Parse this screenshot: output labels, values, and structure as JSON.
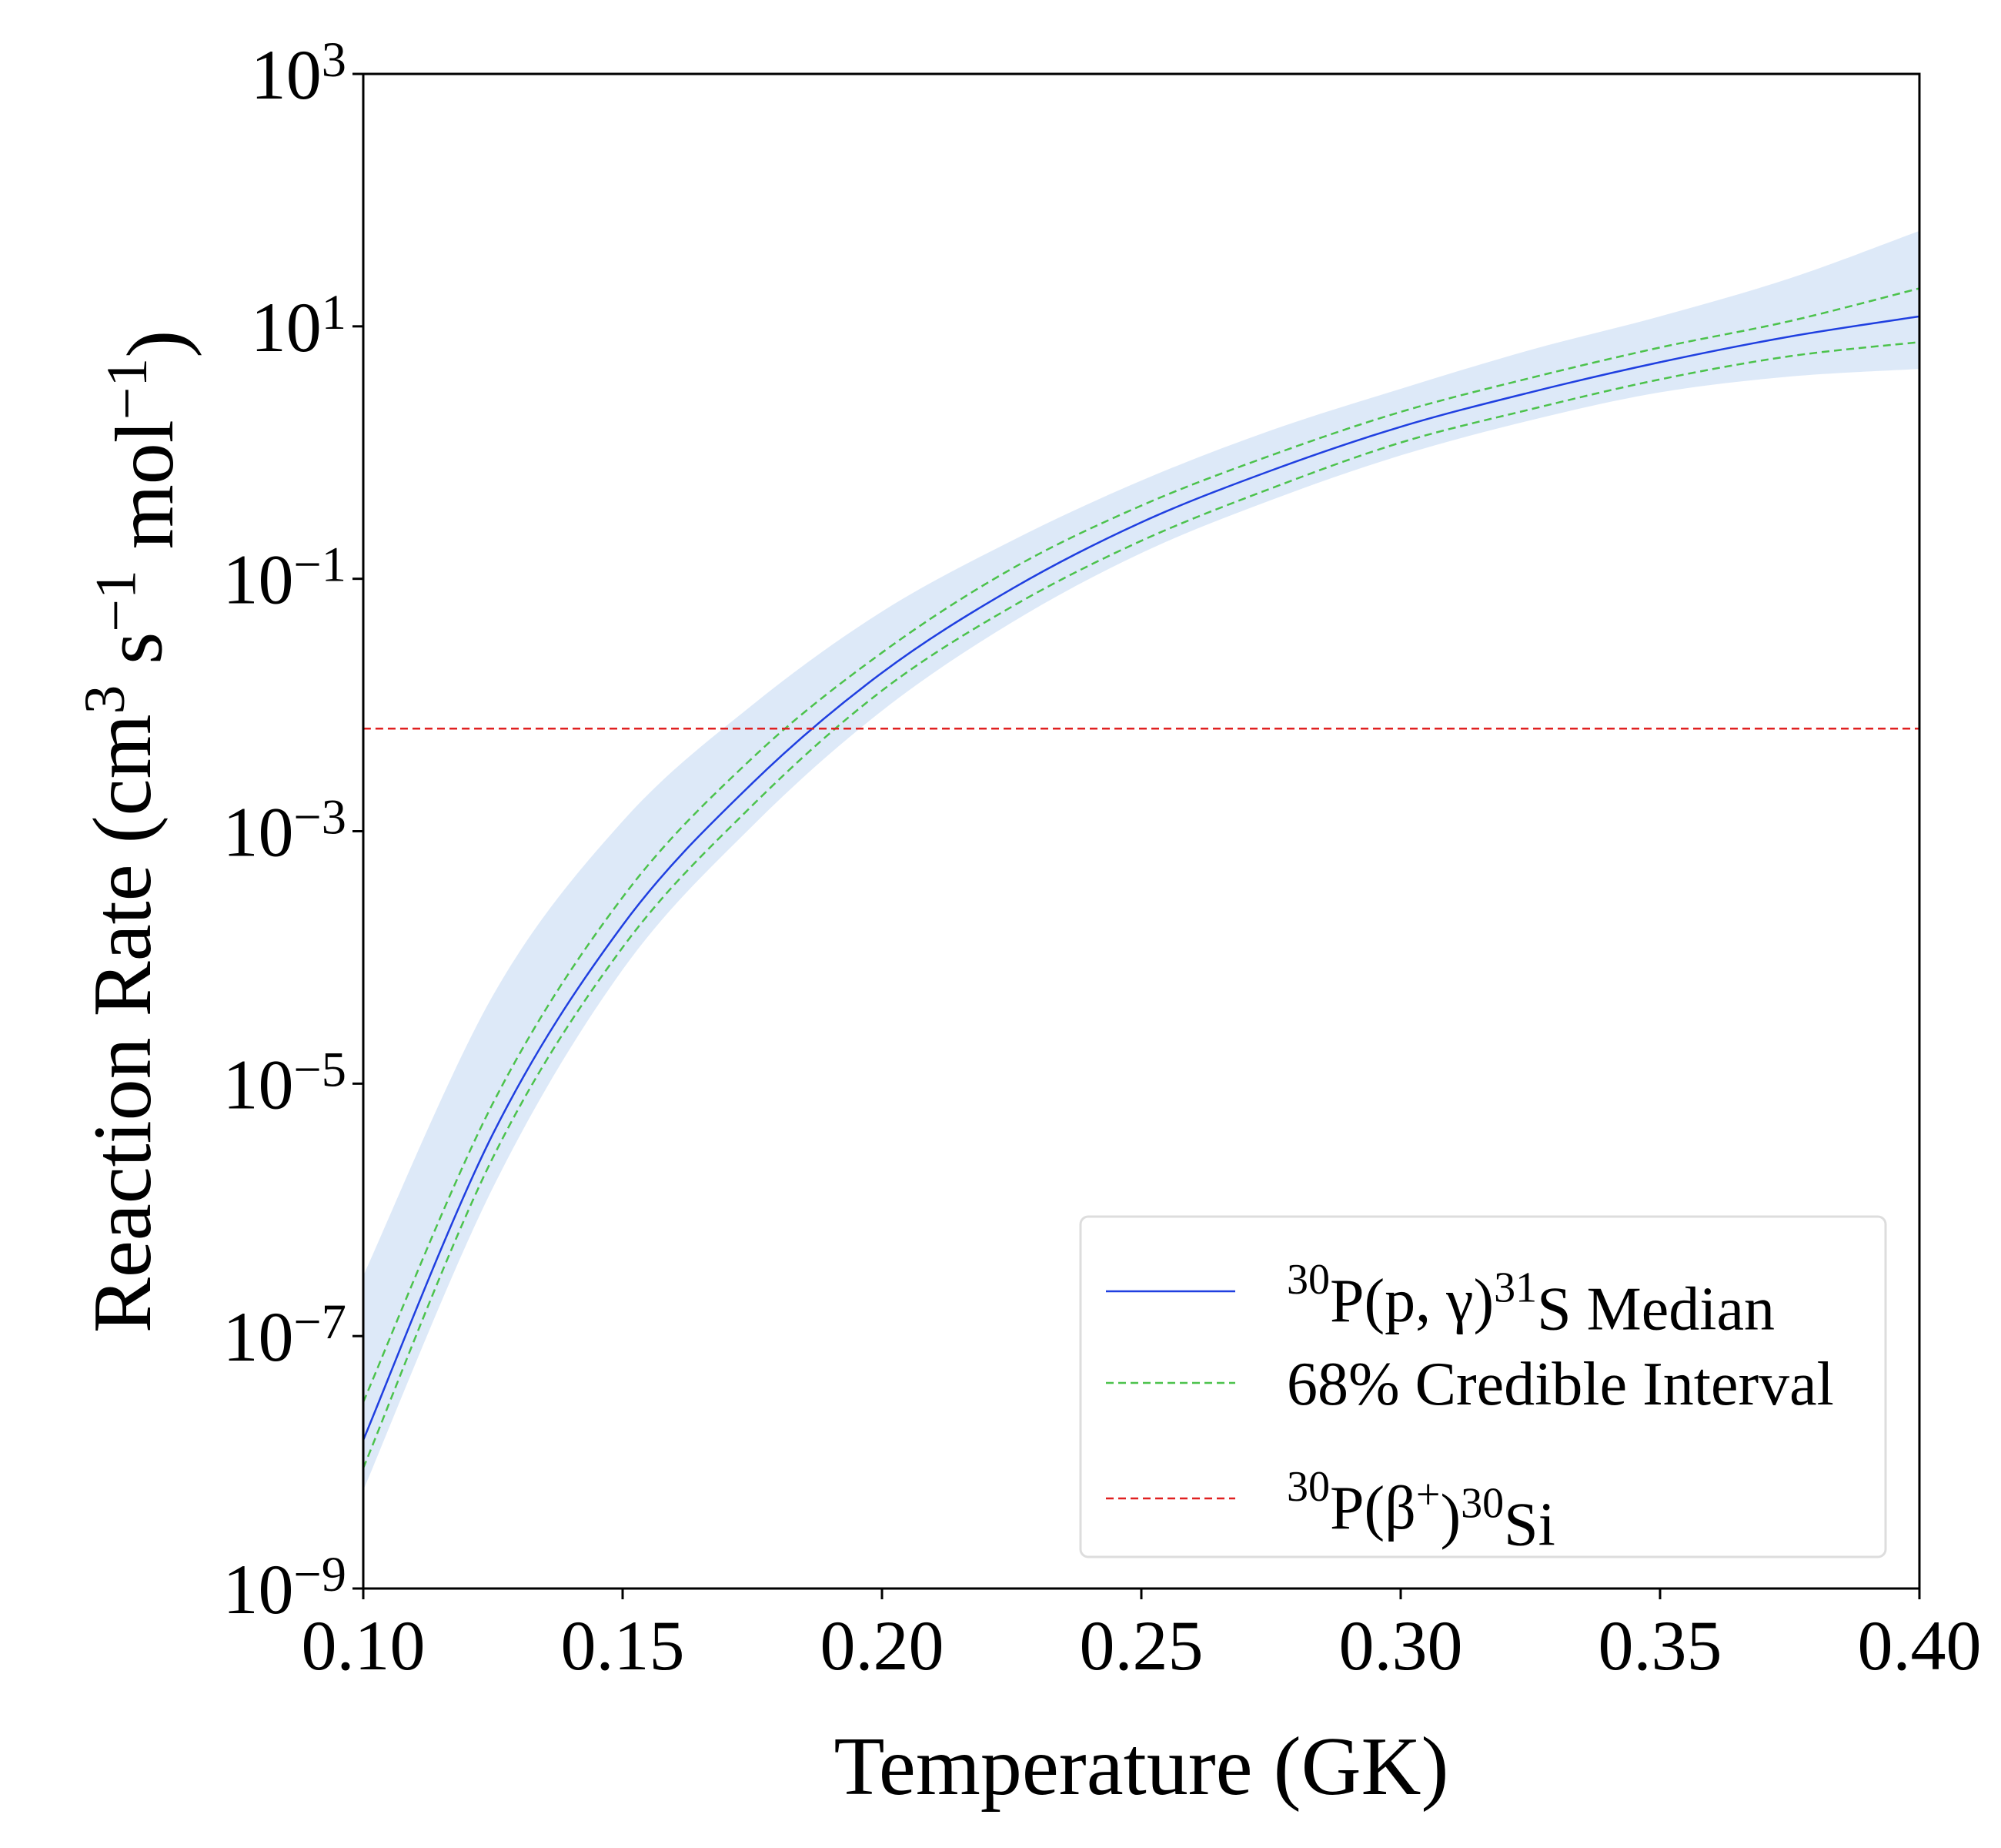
{
  "chart_data": {
    "type": "line",
    "xlabel": "Temperature (GK)",
    "ylabel": "Reaction Rate (cm^{3} s^{−1} mol^{−1})",
    "log_y": true,
    "grid": false,
    "legend": "lower right",
    "x": [
      0.1,
      0.125,
      0.15,
      0.175,
      0.2,
      0.225,
      0.25,
      0.275,
      0.3,
      0.325,
      0.35,
      0.375,
      0.4
    ],
    "xlim": [
      0.1,
      0.4
    ],
    "xticks": [
      {
        "value": 0.1,
        "label": "0.10"
      },
      {
        "value": 0.15,
        "label": "0.15"
      },
      {
        "value": 0.2,
        "label": "0.20"
      },
      {
        "value": 0.25,
        "label": "0.25"
      },
      {
        "value": 0.3,
        "label": "0.30"
      },
      {
        "value": 0.35,
        "label": "0.35"
      },
      {
        "value": 0.4,
        "label": "0.40"
      }
    ],
    "ylim": [
      1e-09,
      1000
    ],
    "yticks": [
      {
        "value": 1e-09,
        "label": "10^{−9}"
      },
      {
        "value": 1e-07,
        "label": "10^{−7}"
      },
      {
        "value": 1e-05,
        "label": "10^{−5}"
      },
      {
        "value": 0.001,
        "label": "10^{−3}"
      },
      {
        "value": 0.1,
        "label": "10^{−1}"
      },
      {
        "value": 10,
        "label": "10^{1}"
      },
      {
        "value": 1000,
        "label": "10^{3}"
      }
    ],
    "bands": [
      {
        "color": "#cfe0f5",
        "upper": [
          3e-07,
          5e-05,
          0.0012,
          0.01,
          0.055,
          0.2,
          0.6,
          1.5,
          3.2,
          6.5,
          12,
          24,
          57
        ],
        "lower": [
          6e-09,
          1.5e-06,
          8e-05,
          0.0011,
          0.009,
          0.045,
          0.16,
          0.42,
          0.95,
          1.8,
          3.0,
          4.0,
          4.6
        ]
      }
    ],
    "series": [
      {
        "name": "^{30}P(p, γ)^{31}S Median",
        "color": "#1f3fe0",
        "dash": false,
        "values": [
          1.5e-08,
          4e-06,
          0.00018,
          0.0024,
          0.018,
          0.083,
          0.28,
          0.72,
          1.6,
          3.0,
          5.2,
          8.3,
          12
        ]
      },
      {
        "name": "68% Credible Interval",
        "color": "#4cc24c",
        "dash": true,
        "values": [
          3e-08,
          7e-06,
          0.0003,
          0.0038,
          0.026,
          0.12,
          0.38,
          0.95,
          2.1,
          3.9,
          6.8,
          11,
          20
        ]
      },
      {
        "color": "#4cc24c",
        "dash": true,
        "values": [
          9e-09,
          2.6e-06,
          0.00012,
          0.0016,
          0.013,
          0.06,
          0.2,
          0.52,
          1.2,
          2.2,
          3.8,
          5.8,
          7.5
        ]
      },
      {
        "name": "^{30}P(β^{+})^{30}Si",
        "color": "#e02020",
        "dash": true,
        "values": [
          0.0065,
          0.0065,
          0.0065,
          0.0065,
          0.0065,
          0.0065,
          0.0065,
          0.0065,
          0.0065,
          0.0065,
          0.0065,
          0.0065,
          0.0065
        ]
      }
    ]
  }
}
